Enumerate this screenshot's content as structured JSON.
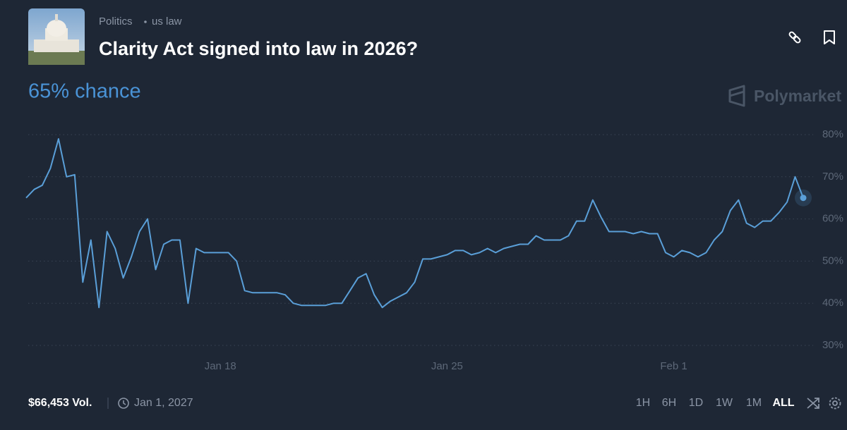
{
  "header": {
    "category": "Politics",
    "tag": "us law",
    "title": "Clarity Act signed into law in 2026?",
    "chance": "65% chance"
  },
  "brand": "Polymarket",
  "footer": {
    "volume": "$66,453 Vol.",
    "end_date": "Jan 1, 2027",
    "ranges": [
      "1H",
      "6H",
      "1D",
      "1W",
      "1M",
      "ALL"
    ]
  },
  "chart_data": {
    "type": "line",
    "color": "#5a9fd8",
    "grid": true,
    "categories": [
      null,
      null,
      null,
      null,
      null,
      null,
      null,
      null,
      null,
      null,
      null,
      null,
      null,
      null,
      null,
      null,
      null,
      null,
      null,
      null,
      null,
      null,
      null,
      null,
      "Jan 18",
      null,
      null,
      null,
      null,
      null,
      null,
      null,
      null,
      null,
      null,
      null,
      null,
      null,
      null,
      null,
      null,
      null,
      null,
      null,
      null,
      null,
      null,
      null,
      null,
      null,
      null,
      null,
      "Jan 25",
      null,
      null,
      null,
      null,
      null,
      null,
      null,
      null,
      null,
      null,
      null,
      null,
      null,
      null,
      null,
      null,
      null,
      null,
      null,
      null,
      null,
      null,
      null,
      null,
      null,
      null,
      null,
      "Feb 1",
      null,
      null,
      null,
      null,
      null,
      null,
      null,
      null,
      null,
      null,
      null,
      null,
      null,
      null,
      null,
      null
    ],
    "values": [
      65,
      67,
      68,
      72,
      79,
      70,
      70.5,
      45,
      55,
      39,
      57,
      53,
      46,
      51,
      57,
      60,
      48,
      54,
      55,
      55,
      40,
      53,
      52,
      52,
      52,
      52,
      50,
      43,
      42.5,
      42.5,
      42.5,
      42.5,
      42,
      40,
      39.5,
      39.5,
      39.5,
      39.5,
      40,
      40,
      43,
      46,
      47,
      42,
      39,
      40.5,
      41.5,
      42.5,
      45,
      50.5,
      50.5,
      51,
      51.5,
      52.5,
      52.5,
      51.5,
      52,
      53,
      52,
      53,
      53.5,
      54,
      54,
      56,
      55,
      55,
      55,
      56,
      59.5,
      59.5,
      64.5,
      60.5,
      57,
      57,
      57,
      56.5,
      57,
      56.5,
      56.5,
      52,
      51,
      52.5,
      52,
      51,
      52,
      55,
      57,
      62,
      64.5,
      59,
      58,
      59.5,
      59.5,
      61.5,
      64,
      70,
      65
    ],
    "ylim": [
      30,
      80
    ],
    "yticks": [
      {
        "value": 30,
        "label": "30%"
      },
      {
        "value": 40,
        "label": "40%"
      },
      {
        "value": 50,
        "label": "50%"
      },
      {
        "value": 60,
        "label": "60%"
      },
      {
        "value": 70,
        "label": "70%"
      },
      {
        "value": 80,
        "label": "80%"
      }
    ]
  }
}
